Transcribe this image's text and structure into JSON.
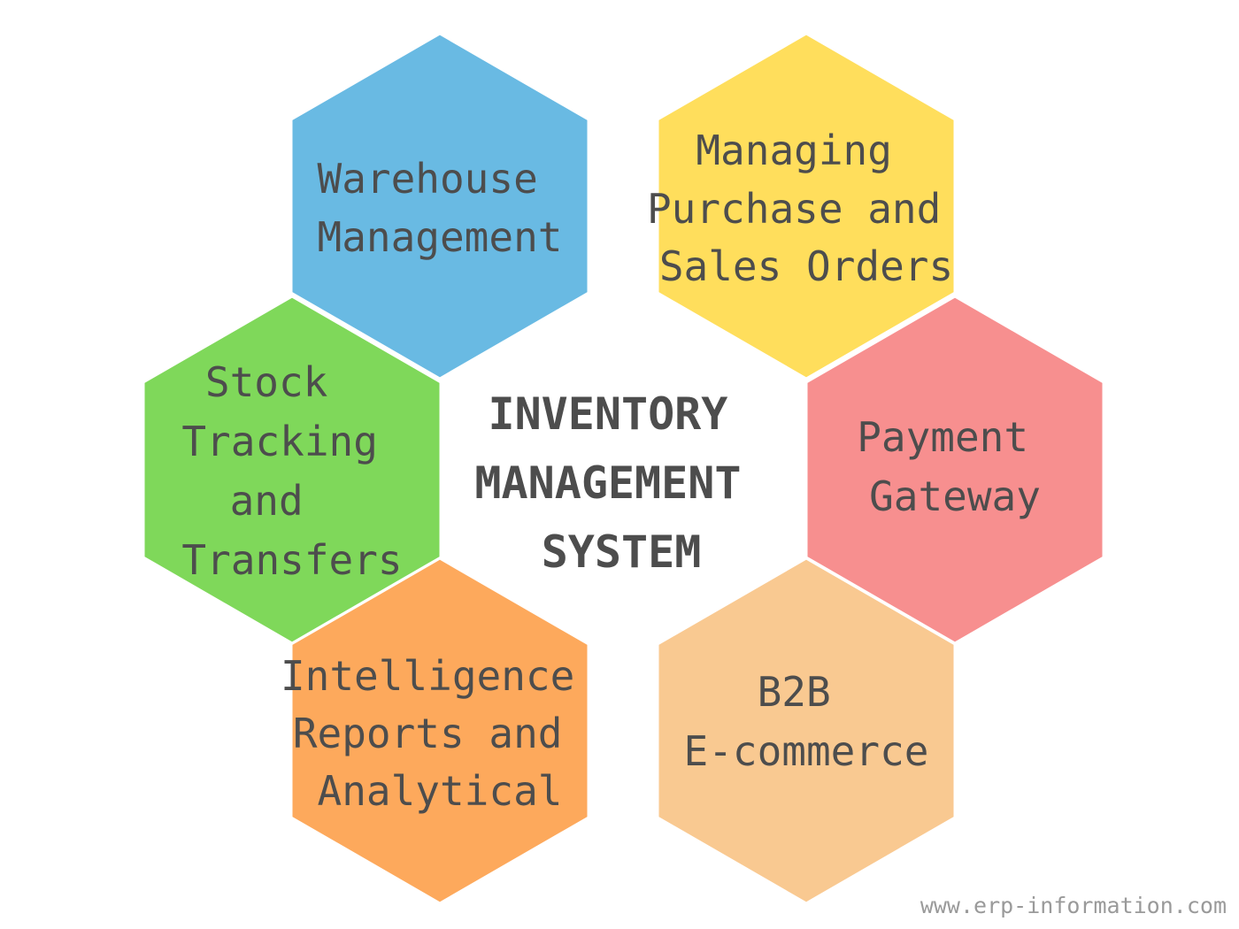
{
  "center": {
    "lines": [
      "INVENTORY",
      "MANAGEMENT",
      "SYSTEM"
    ]
  },
  "hexagons": [
    {
      "id": "warehouse-management",
      "color": "#69bae3",
      "lines": [
        "Warehouse",
        "Management"
      ]
    },
    {
      "id": "managing-purchase-and-sales-orders",
      "color": "#ffde5c",
      "lines": [
        "Managing",
        "Purchase and",
        "Sales Orders"
      ]
    },
    {
      "id": "stock-tracking-and-transfers",
      "color": "#7fd85a",
      "lines": [
        "Stock",
        "Tracking",
        "and",
        "Transfers"
      ]
    },
    {
      "id": "payment-gateway",
      "color": "#f78f8f",
      "lines": [
        "Payment",
        "Gateway"
      ]
    },
    {
      "id": "intelligence-reports-and-analytical",
      "color": "#fda95c",
      "lines": [
        "Intelligence",
        "Reports and",
        "Analytical"
      ]
    },
    {
      "id": "b2b-e-commerce",
      "color": "#f9c991",
      "lines": [
        "B2B",
        "E-commerce"
      ]
    }
  ],
  "watermark": {
    "text": "www.erp-information.com"
  }
}
